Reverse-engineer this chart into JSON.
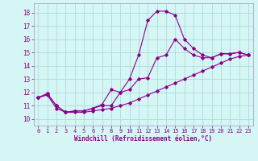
{
  "xlabel": "Windchill (Refroidissement éolien,°C)",
  "background_color": "#d6f5f5",
  "grid_color": "#aadddd",
  "line_color": "#8b008b",
  "xlim": [
    -0.5,
    23.5
  ],
  "ylim": [
    9.5,
    18.7
  ],
  "xticks": [
    0,
    1,
    2,
    3,
    4,
    5,
    6,
    7,
    8,
    9,
    10,
    11,
    12,
    13,
    14,
    15,
    16,
    17,
    18,
    19,
    20,
    21,
    22,
    23
  ],
  "yticks": [
    10,
    11,
    12,
    13,
    14,
    15,
    16,
    17,
    18
  ],
  "line1_x": [
    0,
    1,
    2,
    3,
    4,
    5,
    6,
    7,
    8,
    9,
    10,
    11,
    12,
    13,
    14,
    15,
    16,
    17,
    18,
    19,
    20,
    21,
    22,
    23
  ],
  "line1_y": [
    11.6,
    11.9,
    11.0,
    10.5,
    10.6,
    10.6,
    10.8,
    11.0,
    11.0,
    12.0,
    12.2,
    13.0,
    13.1,
    14.6,
    14.8,
    16.0,
    15.3,
    14.8,
    14.6,
    14.6,
    14.9,
    14.9,
    15.0,
    14.8
  ],
  "line2_x": [
    0,
    1,
    2,
    3,
    4,
    5,
    6,
    7,
    8,
    9,
    10,
    11,
    12,
    13,
    14,
    15,
    16,
    17,
    18,
    19,
    20,
    21,
    22,
    23
  ],
  "line2_y": [
    11.6,
    11.9,
    11.0,
    10.5,
    10.6,
    10.6,
    10.8,
    11.1,
    12.2,
    12.0,
    13.0,
    14.8,
    17.4,
    18.1,
    18.1,
    17.8,
    16.0,
    15.3,
    14.8,
    14.6,
    14.9,
    14.9,
    15.0,
    14.8
  ],
  "line3_x": [
    0,
    1,
    2,
    3,
    4,
    5,
    6,
    7,
    8,
    9,
    10,
    11,
    12,
    13,
    14,
    15,
    16,
    17,
    18,
    19,
    20,
    21,
    22,
    23
  ],
  "line3_y": [
    11.6,
    11.8,
    10.8,
    10.5,
    10.5,
    10.5,
    10.6,
    10.7,
    10.8,
    11.0,
    11.2,
    11.5,
    11.8,
    12.1,
    12.4,
    12.7,
    13.0,
    13.3,
    13.6,
    13.9,
    14.2,
    14.5,
    14.7,
    14.8
  ]
}
